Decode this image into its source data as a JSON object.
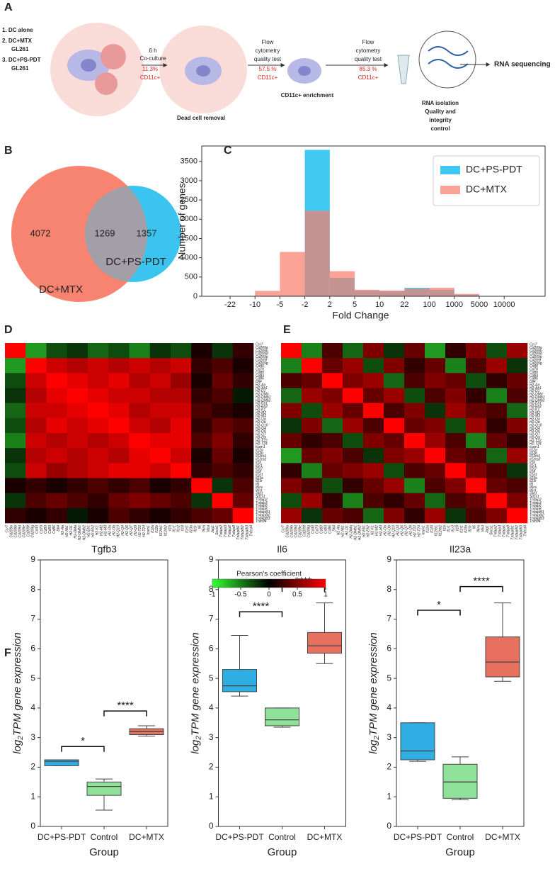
{
  "panels": [
    "A",
    "B",
    "C",
    "D",
    "E",
    "F"
  ],
  "panel_a": {
    "conditions": [
      "1. DC alone",
      "2. DC+MTX",
      "GL261",
      "3. DC+PS-PDT",
      "GL261"
    ],
    "coculture": [
      "6 h",
      "Co-culture"
    ],
    "coculture_pct": "11.3%",
    "marker": "CD11c+",
    "removal": "Dead cell removal",
    "qc": [
      "Flow",
      "cytometry",
      "quality test"
    ],
    "qc1_pct": "57.5 %",
    "enrichment": "CD11c+ enrichment",
    "qc2_pct": "85.3 %",
    "isolation": [
      "RNA isolation",
      "Quality and",
      "integrity",
      "control"
    ],
    "sequencing": "RNA sequencing"
  },
  "heatmap_genes": [
    "Ccr7",
    "Cd209a",
    "Cd209b",
    "Cd209d",
    "Cd209e",
    "Cd209f",
    "Cd209g",
    "Cd40",
    "Cd70",
    "Cd80",
    "Cd83",
    "Cd86",
    "Dll4",
    "H2-Aa",
    "H2-Ab1",
    "H2-D1",
    "H2-DMa",
    "H2-DMb1",
    "H2-DMb2",
    "H2-Eb1",
    "H2-Eb2",
    "H2-K1",
    "H2-M2",
    "H2-M3",
    "H2-Oa",
    "H2-Ob",
    "H2-Q10",
    "H2-Q4",
    "H2-Q6",
    "H2-Q7",
    "H2-Q9",
    "H2-T22",
    "H2-T24",
    "Icam1",
    "Il12a",
    "Il12b",
    "Il12rb1",
    "Il12rb2",
    "Il1b",
    "Il1r1",
    "Il1r2",
    "Il18",
    "Il1rl1",
    "Il23a",
    "Il23r",
    "Il6",
    "Il6ra",
    "Il6st",
    "Jag1",
    "Socs1",
    "Tnfaip2",
    "Tnfaip3",
    "Tnfaip6",
    "Tnfaip8",
    "Tnfaip8l1",
    "Tnfaip8l2",
    "Tnfaip8l3",
    "Tnfrsf4"
  ],
  "colorbar": {
    "label": "Pearson's coefficient",
    "lim": [
      -1,
      1
    ],
    "ticks": [
      -1,
      -0.5,
      0,
      0.5,
      1
    ]
  },
  "chart_data": [
    {
      "type": "venn",
      "sets": [
        {
          "name": "DC+MTX",
          "color": "#f5826e",
          "only": 4072
        },
        {
          "name": "DC+PS-PDT",
          "color": "#3cc4f0",
          "only": 1357
        }
      ],
      "intersection": 1269
    },
    {
      "type": "histogram",
      "xlabel": "Fold Change",
      "ylabel": "Number of genes",
      "bins": [
        -22,
        -10,
        -5,
        -2,
        2,
        5,
        10,
        22,
        100,
        1000,
        5000,
        10000
      ],
      "series": [
        {
          "name": "DC+PS-PDT",
          "color": "#3ec8f2",
          "values": [
            0,
            10,
            20,
            3800,
            480,
            150,
            130,
            220,
            170,
            40,
            2
          ]
        },
        {
          "name": "DC+MTX",
          "color": "#f8806e",
          "values": [
            10,
            140,
            1150,
            2220,
            650,
            170,
            150,
            200,
            220,
            60,
            3
          ]
        }
      ],
      "ylim": [
        0,
        3900
      ],
      "yticks": [
        0,
        500,
        1000,
        1500,
        2000,
        2500,
        3000,
        3500
      ],
      "legend": "upper right"
    },
    {
      "type": "heatmap",
      "matrix": [
        [
          1,
          -0.6,
          -0.3,
          -0.2,
          -0.4,
          -0.3,
          -0.5,
          -0.2,
          -0.3,
          0.1,
          -0.2,
          0.2
        ],
        [
          -0.6,
          1,
          0.8,
          0.7,
          0.8,
          0.7,
          0.8,
          0.7,
          0.8,
          0.2,
          0.3,
          0.1
        ],
        [
          -0.3,
          0.8,
          1,
          0.9,
          0.8,
          0.9,
          0.7,
          0.8,
          0.6,
          0.1,
          0.4,
          0.2
        ],
        [
          -0.2,
          0.7,
          0.9,
          1,
          0.9,
          0.8,
          0.8,
          0.7,
          0.7,
          0.2,
          0.3,
          -0.1
        ],
        [
          -0.4,
          0.8,
          0.8,
          0.9,
          1,
          0.9,
          0.7,
          0.8,
          0.8,
          0.3,
          0.2,
          0.1
        ],
        [
          -0.3,
          0.7,
          0.9,
          0.8,
          0.9,
          1,
          0.8,
          0.7,
          0.9,
          0.2,
          0.4,
          0.3
        ],
        [
          -0.5,
          0.8,
          0.7,
          0.8,
          0.7,
          0.8,
          1,
          0.9,
          0.9,
          0.3,
          0.5,
          0.2
        ],
        [
          -0.2,
          0.7,
          0.8,
          0.7,
          0.8,
          0.7,
          0.9,
          1,
          0.8,
          0.1,
          0.4,
          0.1
        ],
        [
          -0.3,
          0.8,
          0.6,
          0.7,
          0.8,
          0.9,
          0.9,
          0.8,
          1,
          0.2,
          0.3,
          0.2
        ],
        [
          0.1,
          0.2,
          0.1,
          0.2,
          0.3,
          0.2,
          0.3,
          0.1,
          0.2,
          1,
          -0.2,
          0.3
        ],
        [
          -0.2,
          0.3,
          0.4,
          0.3,
          0.2,
          0.4,
          0.5,
          0.4,
          0.3,
          -0.2,
          1,
          0.4
        ],
        [
          0.2,
          0.1,
          0.2,
          -0.1,
          0.1,
          0.3,
          0.2,
          0.1,
          0.2,
          0.3,
          0.4,
          1
        ]
      ]
    },
    {
      "type": "heatmap",
      "matrix": [
        [
          1,
          -0.5,
          0.3,
          -0.4,
          0.5,
          -0.2,
          0.4,
          -0.6,
          0.2,
          0.5,
          -0.3,
          0.6
        ],
        [
          -0.5,
          1,
          0.4,
          0.6,
          -0.3,
          0.5,
          0.2,
          0.4,
          -0.5,
          0.3,
          0.6,
          -0.2
        ],
        [
          0.3,
          0.4,
          1,
          0.5,
          0.6,
          -0.4,
          0.3,
          0.5,
          0.4,
          -0.3,
          0.2,
          0.4
        ],
        [
          -0.4,
          0.6,
          0.5,
          1,
          0.4,
          0.6,
          -0.3,
          0.3,
          0.5,
          0.2,
          -0.5,
          0.3
        ],
        [
          0.5,
          -0.3,
          0.6,
          0.4,
          1,
          0.3,
          0.5,
          -0.2,
          0.6,
          0.4,
          0.3,
          -0.4
        ],
        [
          -0.2,
          0.5,
          -0.4,
          0.6,
          0.3,
          1,
          0.4,
          0.5,
          -0.3,
          0.6,
          0.2,
          0.5
        ],
        [
          0.4,
          0.2,
          0.3,
          -0.3,
          0.5,
          0.4,
          1,
          0.6,
          0.3,
          -0.5,
          0.4,
          0.2
        ],
        [
          -0.6,
          0.4,
          0.5,
          0.3,
          -0.2,
          0.5,
          0.6,
          1,
          0.4,
          0.3,
          -0.4,
          0.6
        ],
        [
          0.2,
          -0.5,
          0.4,
          0.5,
          0.6,
          -0.3,
          0.3,
          0.4,
          1,
          0.5,
          0.3,
          -0.2
        ],
        [
          0.5,
          0.3,
          -0.3,
          0.2,
          0.4,
          0.6,
          -0.5,
          0.3,
          0.5,
          1,
          0.4,
          0.3
        ],
        [
          -0.3,
          0.6,
          0.2,
          -0.5,
          0.3,
          0.2,
          0.4,
          -0.4,
          0.3,
          0.4,
          1,
          0.5
        ],
        [
          0.6,
          -0.2,
          0.4,
          0.3,
          -0.4,
          0.5,
          0.2,
          0.6,
          -0.2,
          0.3,
          0.5,
          1
        ]
      ]
    },
    {
      "type": "box",
      "title": "Tgfb3",
      "xlabel": "Group",
      "ylabel": {
        "base": "log",
        "sub": "2",
        "rest": "TPM gene expression"
      },
      "categories": [
        "DC+PS-PDT",
        "Control",
        "DC+MTX"
      ],
      "colors": [
        "#2eaee3",
        "#90e29a",
        "#e8705e"
      ],
      "low": [
        2.05,
        0.55,
        3.05
      ],
      "q1": [
        2.05,
        1.05,
        3.1
      ],
      "median": [
        2.2,
        1.35,
        3.2
      ],
      "q3": [
        2.25,
        1.5,
        3.3
      ],
      "high": [
        2.25,
        1.6,
        3.4
      ],
      "ylim": [
        0,
        9
      ],
      "yticks": [
        0,
        1,
        2,
        3,
        4,
        5,
        6,
        7,
        8,
        9
      ],
      "significance": [
        {
          "from": 0,
          "to": 1,
          "y": 2.7,
          "label": "*"
        },
        {
          "from": 1,
          "to": 2,
          "y": 3.9,
          "label": "****"
        }
      ]
    },
    {
      "type": "box",
      "title": "Il6",
      "xlabel": "Group",
      "ylabel": {
        "base": "log",
        "sub": "2",
        "rest": "TPM gene expression"
      },
      "categories": [
        "DC+PS-PDT",
        "Control",
        "DC+MTX"
      ],
      "colors": [
        "#2eaee3",
        "#90e29a",
        "#e8705e"
      ],
      "low": [
        4.4,
        3.35,
        5.5
      ],
      "q1": [
        4.55,
        3.4,
        5.85
      ],
      "median": [
        4.75,
        3.6,
        6.1
      ],
      "q3": [
        5.3,
        4.0,
        6.55
      ],
      "high": [
        6.45,
        4.0,
        7.55
      ],
      "ylim": [
        0,
        9
      ],
      "yticks": [
        0,
        1,
        2,
        3,
        4,
        5,
        6,
        7,
        8,
        9
      ],
      "significance": [
        {
          "from": 0,
          "to": 1,
          "y": 7.25,
          "label": "****"
        },
        {
          "from": 1,
          "to": 2,
          "y": 8.1,
          "label": "****"
        }
      ]
    },
    {
      "type": "box",
      "title": "Il23a",
      "xlabel": "Group",
      "ylabel": {
        "base": "log",
        "sub": "2",
        "rest": "TPM gene expression"
      },
      "categories": [
        "DC+PS-PDT",
        "Control",
        "DC+MTX"
      ],
      "colors": [
        "#2eaee3",
        "#90e29a",
        "#e8705e"
      ],
      "low": [
        2.2,
        0.9,
        4.9
      ],
      "q1": [
        2.25,
        0.95,
        5.05
      ],
      "median": [
        2.55,
        1.5,
        5.55
      ],
      "q3": [
        3.5,
        2.1,
        6.4
      ],
      "high": [
        3.5,
        2.35,
        7.55
      ],
      "ylim": [
        0,
        9
      ],
      "yticks": [
        0,
        1,
        2,
        3,
        4,
        5,
        6,
        7,
        8,
        9
      ],
      "significance": [
        {
          "from": 0,
          "to": 1,
          "y": 7.3,
          "label": "*"
        },
        {
          "from": 1,
          "to": 2,
          "y": 8.1,
          "label": "****"
        }
      ]
    }
  ]
}
